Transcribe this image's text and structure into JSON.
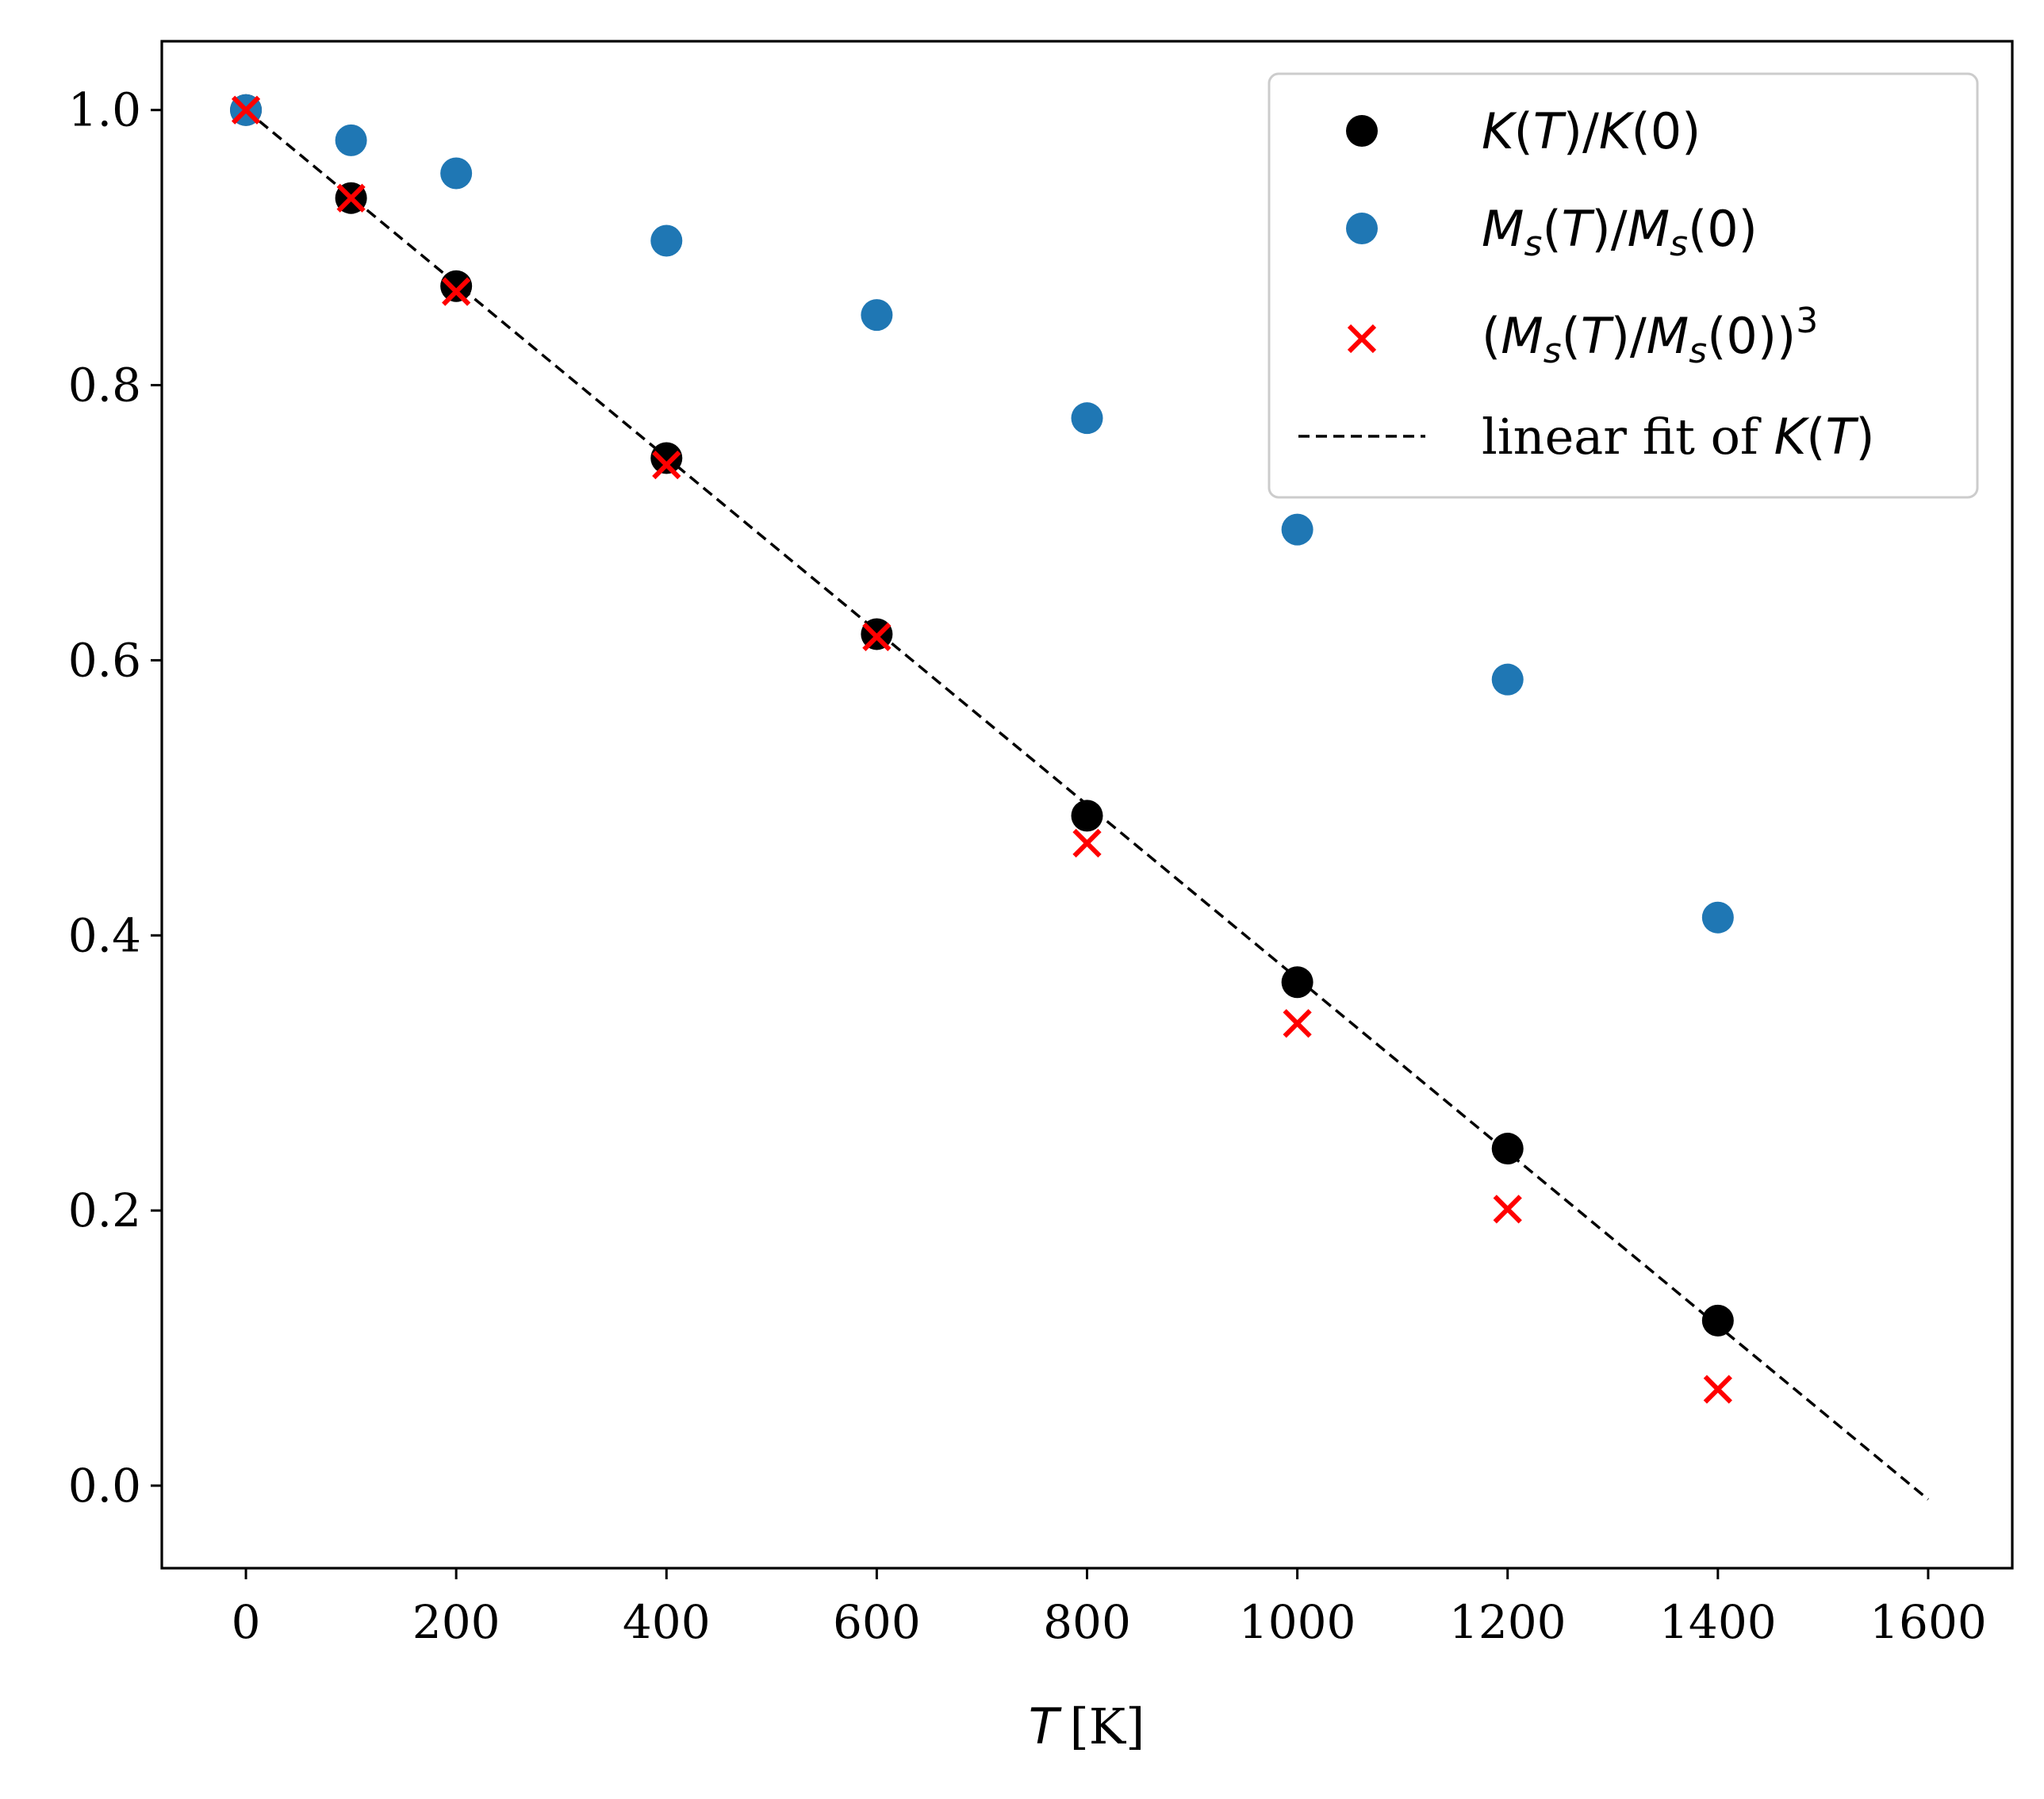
{
  "chart_data": {
    "type": "scatter",
    "title": "",
    "xlabel": "T [K]",
    "xlabel_var": "T",
    "xlabel_unit": "[K]",
    "ylabel": "",
    "xlim": [
      -80,
      1680
    ],
    "ylim": [
      -0.06,
      1.05
    ],
    "xticks": [
      0,
      200,
      400,
      600,
      800,
      1000,
      1200,
      1400,
      1600
    ],
    "xtick_labels": [
      "0",
      "200",
      "400",
      "600",
      "800",
      "1000",
      "1200",
      "1400",
      "1600"
    ],
    "yticks": [
      0.0,
      0.2,
      0.4,
      0.6,
      0.8,
      1.0
    ],
    "ytick_labels": [
      "0.0",
      "0.2",
      "0.4",
      "0.6",
      "0.8",
      "1.0"
    ],
    "legend_position": "top-right",
    "series": [
      {
        "name": "K(T)/K(0)",
        "kind": "scatter-circle",
        "color": "#000000",
        "x": [
          0,
          100,
          200,
          400,
          600,
          800,
          1000,
          1200,
          1400
        ],
        "y": [
          1.0,
          0.936,
          0.872,
          0.747,
          0.619,
          0.487,
          0.366,
          0.245,
          0.12
        ]
      },
      {
        "name": "M_s(T)/M_s(0)",
        "kind": "scatter-circle",
        "color": "#1f77b4",
        "x": [
          0,
          100,
          200,
          400,
          600,
          800,
          1000,
          1200,
          1400
        ],
        "y": [
          1.0,
          0.978,
          0.954,
          0.905,
          0.851,
          0.776,
          0.695,
          0.586,
          0.413
        ]
      },
      {
        "name": "(M_s(T)/M_s(0))^3",
        "kind": "scatter-x",
        "color": "#ff0000",
        "x": [
          0,
          100,
          200,
          400,
          600,
          800,
          1000,
          1200,
          1400
        ],
        "y": [
          1.0,
          0.936,
          0.868,
          0.742,
          0.617,
          0.467,
          0.336,
          0.201,
          0.07
        ]
      },
      {
        "name": "linear fit of K(T)",
        "kind": "line-dashed",
        "color": "#000000",
        "x": [
          0,
          1600
        ],
        "y": [
          1.0,
          -0.01
        ]
      }
    ],
    "legend": [
      {
        "label": "K(T)/K(0)",
        "parts": [
          "K",
          "(",
          "T",
          ")/",
          "K",
          "(0)"
        ]
      },
      {
        "label": "M_s(T)/M_s(0)",
        "parts": [
          "M",
          "s",
          "(",
          "T",
          ")/",
          "M",
          "s",
          "(0)"
        ]
      },
      {
        "label": "(M_s(T)/M_s(0))^3",
        "parts": [
          "(",
          "M",
          "s",
          "(",
          "T",
          ")/",
          "M",
          "s",
          "(0))",
          "3"
        ]
      },
      {
        "label": "linear fit of K(T)",
        "parts": [
          "linear fit of ",
          "K",
          "(",
          "T",
          ")"
        ]
      }
    ]
  }
}
